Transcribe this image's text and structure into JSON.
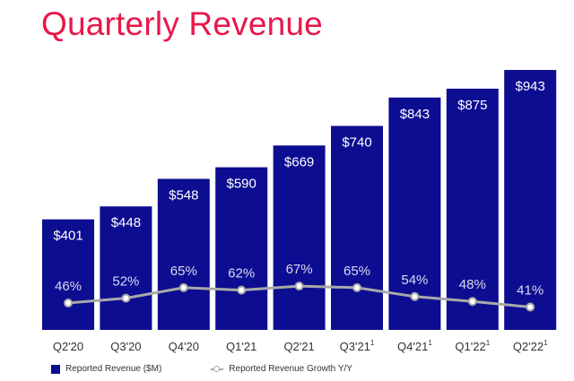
{
  "title": "Quarterly Revenue",
  "colors": {
    "title": "#e8174a",
    "bar": "#0d0d91",
    "line": "#a9a9a9",
    "bar_label": "#ffffff",
    "growth_label": "#d9d9ee",
    "axis_label": "#333333"
  },
  "chart_data": {
    "type": "bar",
    "title": "Quarterly Revenue",
    "categories": [
      "Q2'20",
      "Q3'20",
      "Q4'20",
      "Q1'21",
      "Q2'21",
      "Q3'21",
      "Q4'21",
      "Q1'22",
      "Q2'22"
    ],
    "footnote_marks": [
      "",
      "",
      "",
      "",
      "",
      "1",
      "1",
      "1",
      "1"
    ],
    "series": [
      {
        "name": "Reported Revenue ($M)",
        "type": "bar",
        "values": [
          401,
          448,
          548,
          590,
          669,
          740,
          843,
          875,
          943
        ],
        "labels": [
          "$401",
          "$448",
          "$548",
          "$590",
          "$669",
          "$740",
          "$843",
          "$875",
          "$943"
        ]
      },
      {
        "name": "Reported Revenue Growth Y/Y",
        "type": "line",
        "values": [
          46,
          52,
          65,
          62,
          67,
          65,
          54,
          48,
          41
        ],
        "labels": [
          "46%",
          "52%",
          "65%",
          "62%",
          "67%",
          "65%",
          "54%",
          "48%",
          "41%"
        ]
      }
    ],
    "legend": [
      "Reported Revenue ($M)",
      "Reported Revenue Growth Y/Y"
    ],
    "legend_position": "bottom-left",
    "grid": false
  }
}
